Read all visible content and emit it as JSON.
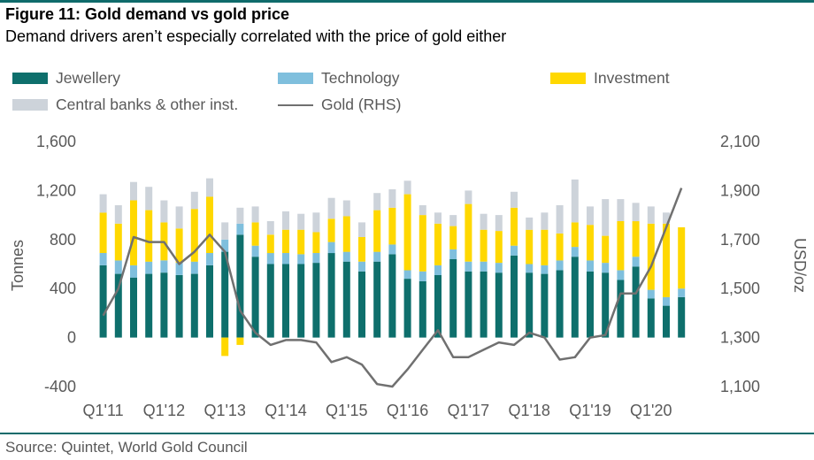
{
  "figure": {
    "title": "Figure 11: Gold demand vs gold price",
    "subtitle": "Demand drivers aren’t especially correlated with the price of gold either",
    "source": "Source: Quintet, World Gold Council"
  },
  "colors": {
    "jewellery": "#0e6f6c",
    "technology": "#7fbfdd",
    "investment": "#ffd800",
    "central_banks": "#cdd3da",
    "gold_line": "#707070",
    "rule": "#0f6b6b",
    "text": "#595959"
  },
  "legend": [
    {
      "key": "jewellery",
      "label": "Jewellery",
      "kind": "box"
    },
    {
      "key": "technology",
      "label": "Technology",
      "kind": "box"
    },
    {
      "key": "investment",
      "label": "Investment",
      "kind": "box"
    },
    {
      "key": "central_banks",
      "label": "Central banks & other inst.",
      "kind": "box"
    },
    {
      "key": "gold_line",
      "label": "Gold (RHS)",
      "kind": "line"
    }
  ],
  "chart_data": {
    "type": "bar",
    "stacked": true,
    "ylabel": "Tonnes",
    "y2label": "USD/oz",
    "ylim": [
      -400,
      1600
    ],
    "yticks": [
      -400,
      0,
      400,
      800,
      1200,
      1600
    ],
    "ytick_labels": [
      "-400",
      "0",
      "400",
      "800",
      "1,200",
      "1,600"
    ],
    "y2lim": [
      1100,
      2100
    ],
    "y2ticks": [
      1100,
      1300,
      1500,
      1700,
      1900,
      2100
    ],
    "y2tick_labels": [
      "1,100",
      "1,300",
      "1,500",
      "1,700",
      "1,900",
      "2,100"
    ],
    "legend_position": "top",
    "grid": false,
    "categories": [
      "Q1'11",
      "Q2'11",
      "Q3'11",
      "Q4'11",
      "Q1'12",
      "Q2'12",
      "Q3'12",
      "Q4'12",
      "Q1'13",
      "Q2'13",
      "Q3'13",
      "Q4'13",
      "Q1'14",
      "Q2'14",
      "Q3'14",
      "Q4'14",
      "Q1'15",
      "Q2'15",
      "Q3'15",
      "Q4'15",
      "Q1'16",
      "Q2'16",
      "Q3'16",
      "Q4'16",
      "Q1'17",
      "Q2'17",
      "Q3'17",
      "Q4'17",
      "Q1'18",
      "Q2'18",
      "Q3'18",
      "Q4'18",
      "Q1'19",
      "Q2'19",
      "Q3'19",
      "Q4'19",
      "Q1'20",
      "Q2'20",
      "Q3'20",
      "Q4'20"
    ],
    "x_tick_labels": [
      "Q1'11",
      "Q1'12",
      "Q1'13",
      "Q1'14",
      "Q1'15",
      "Q1'16",
      "Q1'17",
      "Q1'18",
      "Q1'19",
      "Q1'20"
    ],
    "series": [
      {
        "name": "Jewellery",
        "key": "jewellery",
        "values": [
          590,
          520,
          490,
          520,
          530,
          510,
          520,
          590,
          700,
          840,
          660,
          600,
          600,
          600,
          610,
          690,
          620,
          540,
          620,
          680,
          480,
          460,
          510,
          640,
          540,
          540,
          530,
          670,
          530,
          520,
          550,
          660,
          540,
          530,
          470,
          580,
          320,
          260,
          330,
          null
        ]
      },
      {
        "name": "Technology",
        "key": "technology",
        "values": [
          100,
          110,
          100,
          100,
          100,
          100,
          100,
          100,
          100,
          90,
          90,
          90,
          90,
          80,
          80,
          90,
          80,
          80,
          80,
          80,
          70,
          80,
          80,
          80,
          80,
          80,
          80,
          80,
          70,
          70,
          80,
          80,
          90,
          80,
          80,
          80,
          70,
          70,
          70,
          null
        ]
      },
      {
        "name": "Investment",
        "key": "investment",
        "values": [
          330,
          300,
          530,
          420,
          310,
          280,
          430,
          460,
          -150,
          -60,
          190,
          150,
          190,
          200,
          170,
          190,
          290,
          200,
          340,
          300,
          620,
          460,
          340,
          190,
          470,
          260,
          260,
          310,
          280,
          290,
          220,
          200,
          290,
          220,
          400,
          290,
          540,
          600,
          500,
          null
        ]
      },
      {
        "name": "Central banks & other inst.",
        "key": "central_banks",
        "values": [
          150,
          150,
          150,
          190,
          180,
          180,
          140,
          150,
          140,
          130,
          130,
          110,
          150,
          130,
          160,
          170,
          130,
          120,
          140,
          150,
          110,
          80,
          90,
          90,
          110,
          130,
          130,
          130,
          100,
          140,
          230,
          350,
          150,
          300,
          180,
          150,
          140,
          90,
          0,
          null
        ]
      },
      {
        "name": "Gold (RHS)",
        "key": "gold_line",
        "type": "line",
        "axis": "y2",
        "values": [
          1390,
          1500,
          1710,
          1690,
          1690,
          1600,
          1650,
          1720,
          1650,
          1410,
          1320,
          1270,
          1290,
          1290,
          1280,
          1200,
          1220,
          1190,
          1110,
          1100,
          1170,
          1250,
          1330,
          1220,
          1220,
          1250,
          1280,
          1270,
          1320,
          1300,
          1210,
          1220,
          1300,
          1310,
          1480,
          1480,
          1590,
          1750,
          1910,
          null
        ]
      }
    ]
  }
}
